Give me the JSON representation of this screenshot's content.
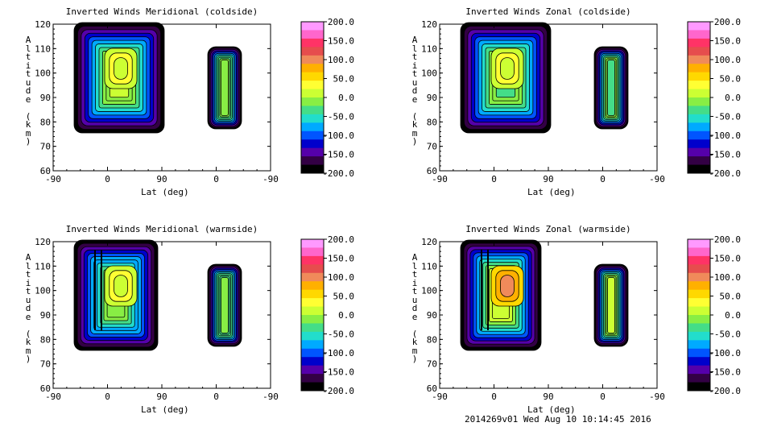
{
  "footer": "2014269v01 Wed Aug 10 10:14:45 2016",
  "colorbar": {
    "labels": [
      "200.0",
      "150.0",
      "100.0",
      "50.0",
      "0.0",
      "-50.0",
      "-100.0",
      "-150.0",
      "-200.0"
    ],
    "colors": [
      "#ff99ff",
      "#ff66cc",
      "#ff3366",
      "#e64d4d",
      "#f08a5a",
      "#ffb000",
      "#ffd800",
      "#ffff33",
      "#ccff33",
      "#88ee44",
      "#44dd88",
      "#22ddcc",
      "#00aaff",
      "#0055ff",
      "#0000cc",
      "#5500aa",
      "#330044",
      "#000000"
    ]
  },
  "chart_data": [
    {
      "type": "heatmap",
      "title": "Inverted Winds Meridional (coldside)",
      "ylabel": "Altitude (km)",
      "xlabel": "Lat (deg)",
      "xticks": [
        "-90",
        "0",
        "90",
        "0",
        "-90"
      ],
      "yticks": [
        "120",
        "110",
        "100",
        "90",
        "80",
        "70",
        "60"
      ],
      "ylim": [
        60,
        120
      ],
      "colorbar_range": [
        -200,
        200
      ]
    },
    {
      "type": "heatmap",
      "title": "Inverted Winds Zonal (coldside)",
      "ylabel": "Altitude (km)",
      "xlabel": "Lat (deg)",
      "xticks": [
        "-90",
        "0",
        "90",
        "0",
        "-90"
      ],
      "yticks": [
        "120",
        "110",
        "100",
        "90",
        "80",
        "70",
        "60"
      ],
      "ylim": [
        60,
        120
      ],
      "colorbar_range": [
        -200,
        200
      ]
    },
    {
      "type": "heatmap",
      "title": "Inverted Winds Meridional (warmside)",
      "ylabel": "Altitude (km)",
      "xlabel": "Lat (deg)",
      "xticks": [
        "-90",
        "0",
        "90",
        "0",
        "-90"
      ],
      "yticks": [
        "120",
        "110",
        "100",
        "90",
        "80",
        "70",
        "60"
      ],
      "ylim": [
        60,
        120
      ],
      "colorbar_range": [
        -200,
        200
      ]
    },
    {
      "type": "heatmap",
      "title": "Inverted Winds Zonal (warmside)",
      "ylabel": "Altitude (km)",
      "xlabel": "Lat (deg)",
      "xticks": [
        "-90",
        "0",
        "90",
        "0",
        "-90"
      ],
      "yticks": [
        "120",
        "110",
        "100",
        "90",
        "80",
        "70",
        "60"
      ],
      "ylim": [
        60,
        120
      ],
      "colorbar_range": [
        -200,
        200
      ]
    }
  ]
}
